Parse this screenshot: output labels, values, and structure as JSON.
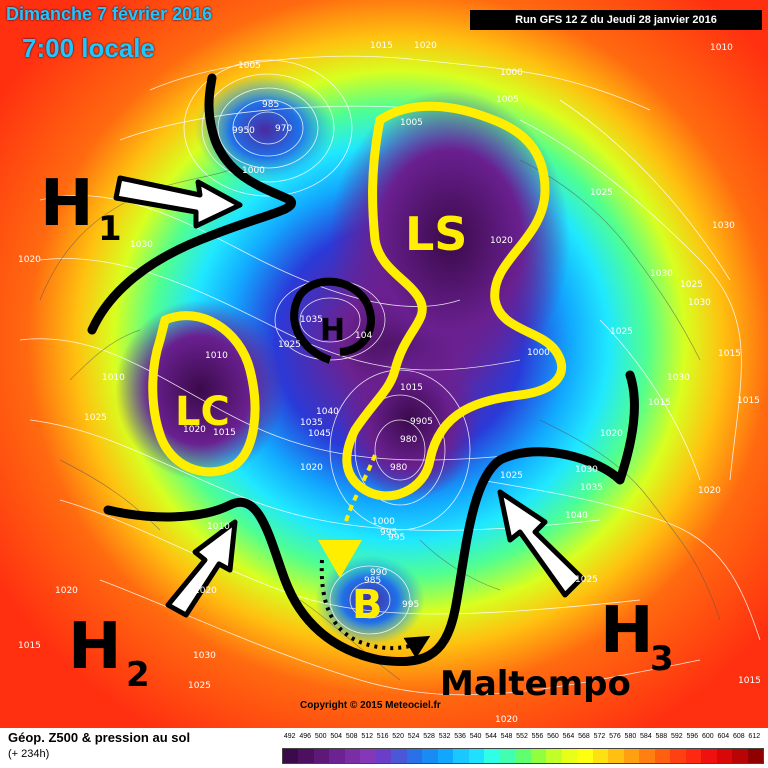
{
  "header": {
    "date": "Dimanche 7 février 2016",
    "time": "7:00 locale",
    "run": "Run GFS 12 Z du Jeudi 28 janvier 2016"
  },
  "footer": {
    "title": "Géop. Z500 & pression au sol",
    "forecast": "(+ 234h)",
    "copyright": "Copyright © 2015 Meteociel.fr"
  },
  "annotations": {
    "h1": "H",
    "h1_sub": "1",
    "h2": "H",
    "h2_sub": "2",
    "h3": "H",
    "h3_sub": "3",
    "ls": "LS",
    "lc": "LC",
    "h_center": "H",
    "b": "B",
    "maltempo": "Maltempo"
  },
  "scale": {
    "labels": [
      "492",
      "496",
      "500",
      "504",
      "508",
      "512",
      "516",
      "520",
      "524",
      "528",
      "532",
      "536",
      "540",
      "544",
      "548",
      "552",
      "556",
      "560",
      "564",
      "568",
      "572",
      "576",
      "580",
      "584",
      "588",
      "592",
      "596",
      "600",
      "604",
      "608",
      "612"
    ],
    "colors": [
      "#3a0a4a",
      "#4d0f60",
      "#5e1878",
      "#6c2290",
      "#7a2ea6",
      "#8438b8",
      "#6a3ec8",
      "#4a58d8",
      "#2a70e8",
      "#1a8af5",
      "#10a8ff",
      "#18c8ff",
      "#20e0ff",
      "#30ffe8",
      "#40ffb0",
      "#60ff70",
      "#90ff40",
      "#c0ff28",
      "#e8ff18",
      "#ffff10",
      "#ffe010",
      "#ffc010",
      "#ffa010",
      "#ff8010",
      "#ff6010",
      "#ff4010",
      "#ff2810",
      "#f01010",
      "#d80808",
      "#b80404",
      "#900000"
    ]
  },
  "isobars": {
    "iso_1005_a": "1005",
    "iso_1015_a": "1015",
    "iso_1020_a": "1020",
    "iso_985": "985",
    "iso_970": "970",
    "iso_9950": "9950",
    "iso_1000_a": "1000",
    "iso_1000_b": "1000",
    "iso_1005_b": "1005",
    "iso_1010_a": "1010",
    "iso_1005_c": "1005",
    "iso_1020_b": "1020",
    "iso_1025_a": "1025",
    "iso_1030_a": "1030",
    "iso_1030_b": "1030",
    "iso_1020_c": "1020",
    "iso_1035_a": "1035",
    "iso_104": "104",
    "iso_1025_b": "1025",
    "iso_1010_b": "1010",
    "iso_1010_c": "1010",
    "iso_1025_c": "1025",
    "iso_1020_d": "1020",
    "iso_1015_b": "1015",
    "iso_1040": "1040",
    "iso_1035_b": "1035",
    "iso_1045": "1045",
    "iso_1020_e": "1020",
    "iso_1000_c": "1000",
    "iso_1015_c": "1015",
    "iso_9905": "9905",
    "iso_980_a": "980",
    "iso_980_b": "980",
    "iso_995_a": "995",
    "iso_1000_d": "1000",
    "iso_995_b": "995",
    "iso_990": "990",
    "iso_985_b": "985",
    "iso_995_c": "995",
    "iso_1025_d": "1025",
    "iso_1030_c": "1030",
    "iso_1035_c": "1035",
    "iso_1040_b": "1040",
    "iso_1020_f": "1020",
    "iso_1025_e": "1025",
    "iso_1025_f": "1025",
    "iso_1030_d": "1030",
    "iso_1030_e": "1030",
    "iso_1025_g": "1025",
    "iso_1030_f": "1030",
    "iso_1015_d": "1015",
    "iso_1015_e": "1015",
    "iso_1015_f": "1015",
    "iso_1020_g": "1020",
    "iso_1020_h": "1020",
    "iso_1020_i": "1020",
    "iso_1010_d": "1010",
    "iso_1030_g": "1030",
    "iso_1025_h": "1025",
    "iso_1015_g": "1015",
    "iso_1020_j": "1020",
    "iso_1015_h": "1015"
  }
}
